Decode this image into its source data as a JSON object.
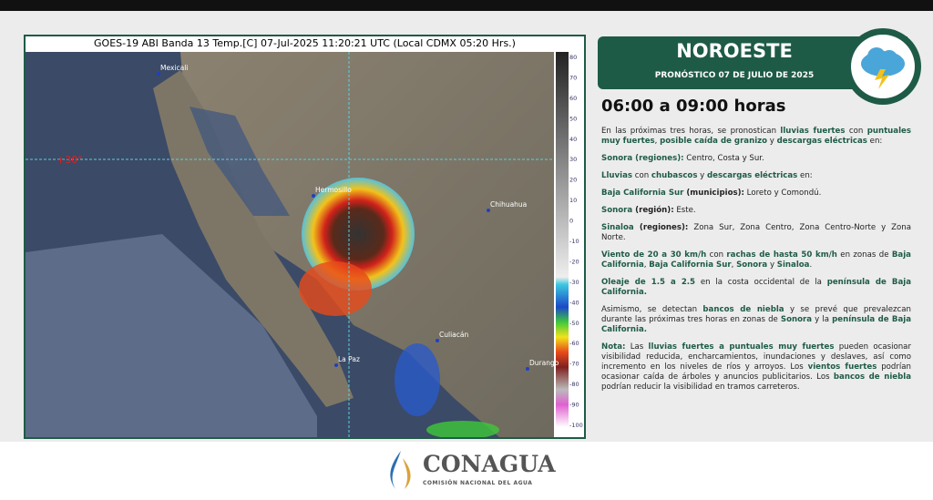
{
  "satellite": {
    "caption": "GOES-19 ABI Banda 13 Temp.[C] 07-Jul-2025 11:20:21 UTC (Local CDMX  05:20 Hrs.)",
    "places": [
      "Mexicali",
      "Hermosillo",
      "Chihuahua",
      "Culiacán",
      "Durango",
      "La Paz"
    ],
    "latitude_label": "+30°",
    "scale": [
      80,
      70,
      60,
      50,
      40,
      30,
      20,
      10,
      0,
      -10,
      -20,
      -30,
      -40,
      -50,
      -60,
      -70,
      -80,
      -90,
      -100
    ]
  },
  "header": {
    "region": "NOROESTE",
    "subtitle": "PRONÓSTICO 07 DE JULIO DE 2025"
  },
  "period": "06:00 a 09:00 horas",
  "paragraphs": [
    [
      {
        "t": "En las próximas tres horas, se pronostican "
      },
      {
        "t": "lluvias fuertes",
        "s": "g"
      },
      {
        "t": " con "
      },
      {
        "t": "puntuales muy fuertes",
        "s": "g"
      },
      {
        "t": ", "
      },
      {
        "t": "posible caída de granizo",
        "s": "g"
      },
      {
        "t": " y "
      },
      {
        "t": "descargas eléctricas",
        "s": "g"
      },
      {
        "t": " en:"
      }
    ],
    [
      {
        "t": "Sonora (regiones):",
        "s": "g"
      },
      {
        "t": " Centro, Costa y Sur."
      }
    ],
    [
      {
        "t": "Lluvias",
        "s": "g"
      },
      {
        "t": " con "
      },
      {
        "t": "chubascos",
        "s": "g"
      },
      {
        "t": " y "
      },
      {
        "t": "descargas eléctricas",
        "s": "g"
      },
      {
        "t": " en:"
      }
    ],
    [
      {
        "t": "Baja California Sur",
        "s": "g"
      },
      {
        "t": " (municipios):",
        "s": "k"
      },
      {
        "t": " Loreto y Comondú."
      }
    ],
    [
      {
        "t": "Sonora",
        "s": "g"
      },
      {
        "t": " (región):",
        "s": "k"
      },
      {
        "t": " Este."
      }
    ],
    [
      {
        "t": "Sinaloa",
        "s": "g"
      },
      {
        "t": " (regiones):",
        "s": "k"
      },
      {
        "t": " Zona Sur, Zona Centro, Zona Centro-Norte y Zona Norte."
      }
    ],
    [
      {
        "t": "Viento de 20 a 30 km/h",
        "s": "g"
      },
      {
        "t": " con "
      },
      {
        "t": "rachas de hasta 50 km/h",
        "s": "g"
      },
      {
        "t": " en zonas de "
      },
      {
        "t": "Baja California",
        "s": "g"
      },
      {
        "t": ", "
      },
      {
        "t": "Baja California Sur",
        "s": "g"
      },
      {
        "t": ", "
      },
      {
        "t": "Sonora",
        "s": "g"
      },
      {
        "t": " y "
      },
      {
        "t": "Sinaloa",
        "s": "g"
      },
      {
        "t": "."
      }
    ],
    [
      {
        "t": "Oleaje de 1.5 a 2.5",
        "s": "g"
      },
      {
        "t": " en la costa occidental de la "
      },
      {
        "t": "península de Baja California.",
        "s": "g"
      }
    ],
    [
      {
        "t": "Asimismo, se detectan "
      },
      {
        "t": "bancos de niebla",
        "s": "g"
      },
      {
        "t": " y se prevé que prevalezcan durante las próximas tres horas en zonas de "
      },
      {
        "t": "Sonora",
        "s": "g"
      },
      {
        "t": " y la "
      },
      {
        "t": "península de Baja California.",
        "s": "g"
      }
    ],
    [
      {
        "t": "Nota:",
        "s": "g"
      },
      {
        "t": " Las "
      },
      {
        "t": "lluvias fuertes a puntuales muy fuertes",
        "s": "g"
      },
      {
        "t": " pueden ocasionar visibilidad reducida, encharcamientos, inundaciones y deslaves, así como incremento en los niveles de ríos y arroyos. Los "
      },
      {
        "t": "vientos fuertes",
        "s": "g"
      },
      {
        "t": " podrían ocasionar caída de árboles y anuncios publicitarios. Los "
      },
      {
        "t": "bancos de niebla",
        "s": "g"
      },
      {
        "t": " podrían reducir la visibilidad en tramos carreteros."
      }
    ]
  ],
  "logo": {
    "name": "CONAGUA",
    "tagline": "COMISIÓN NACIONAL DEL AGUA"
  }
}
